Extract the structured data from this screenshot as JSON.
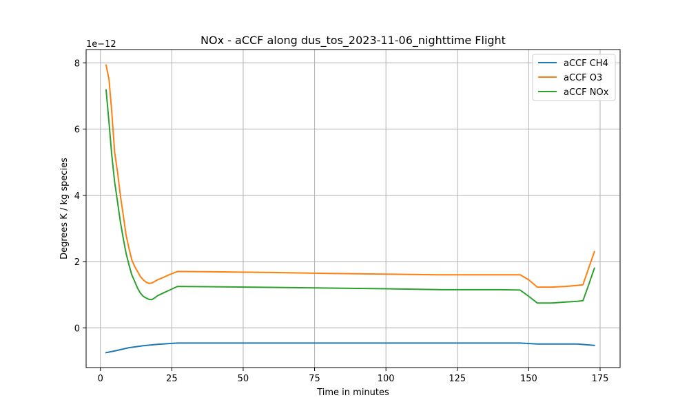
{
  "chart_data": {
    "type": "line",
    "title": "NOx - aCCF along dus_tos_2023-11-06_nighttime Flight",
    "xlabel": "Time in minutes",
    "ylabel": "Degrees K / kg species",
    "y_offset_label": "1e−12",
    "xlim": [
      -5,
      182
    ],
    "ylim": [
      -1.2,
      8.4
    ],
    "y_scale": 1e-12,
    "grid": true,
    "legend_position": "upper-right",
    "x_ticks": [
      0,
      25,
      50,
      75,
      100,
      125,
      150,
      175
    ],
    "y_ticks": [
      0,
      2,
      4,
      6,
      8
    ],
    "series": [
      {
        "name": "aCCF CH4",
        "color": "#1f77b4",
        "points": [
          [
            2,
            -0.75
          ],
          [
            5,
            -0.7
          ],
          [
            10,
            -0.6
          ],
          [
            15,
            -0.54
          ],
          [
            20,
            -0.5
          ],
          [
            25,
            -0.47
          ],
          [
            27,
            -0.46
          ],
          [
            50,
            -0.46
          ],
          [
            100,
            -0.46
          ],
          [
            147,
            -0.46
          ],
          [
            153,
            -0.49
          ],
          [
            160,
            -0.49
          ],
          [
            167,
            -0.49
          ],
          [
            173,
            -0.53
          ]
        ]
      },
      {
        "name": "aCCF O3",
        "color": "#ff7f0e",
        "points": [
          [
            2,
            7.93
          ],
          [
            3,
            7.5
          ],
          [
            4,
            6.5
          ],
          [
            5,
            5.3
          ],
          [
            6,
            4.7
          ],
          [
            7,
            4.0
          ],
          [
            8,
            3.4
          ],
          [
            9,
            2.8
          ],
          [
            10,
            2.4
          ],
          [
            11,
            2.05
          ],
          [
            12,
            1.85
          ],
          [
            13,
            1.7
          ],
          [
            14,
            1.55
          ],
          [
            15,
            1.45
          ],
          [
            16,
            1.38
          ],
          [
            17,
            1.34
          ],
          [
            18,
            1.35
          ],
          [
            20,
            1.45
          ],
          [
            22,
            1.52
          ],
          [
            24,
            1.6
          ],
          [
            27,
            1.7
          ],
          [
            40,
            1.69
          ],
          [
            60,
            1.67
          ],
          [
            80,
            1.64
          ],
          [
            100,
            1.62
          ],
          [
            120,
            1.6
          ],
          [
            140,
            1.6
          ],
          [
            147,
            1.6
          ],
          [
            150,
            1.45
          ],
          [
            153,
            1.23
          ],
          [
            158,
            1.23
          ],
          [
            163,
            1.25
          ],
          [
            167,
            1.28
          ],
          [
            169,
            1.3
          ],
          [
            171,
            1.8
          ],
          [
            173,
            2.3
          ]
        ]
      },
      {
        "name": "aCCF NOx",
        "color": "#2ca02c",
        "points": [
          [
            2,
            7.18
          ],
          [
            3,
            6.2
          ],
          [
            4,
            5.2
          ],
          [
            5,
            4.4
          ],
          [
            6,
            3.8
          ],
          [
            7,
            3.2
          ],
          [
            8,
            2.7
          ],
          [
            9,
            2.25
          ],
          [
            10,
            1.9
          ],
          [
            11,
            1.6
          ],
          [
            12,
            1.4
          ],
          [
            13,
            1.2
          ],
          [
            14,
            1.05
          ],
          [
            15,
            0.95
          ],
          [
            16,
            0.9
          ],
          [
            17,
            0.86
          ],
          [
            18,
            0.85
          ],
          [
            19,
            0.9
          ],
          [
            20,
            0.97
          ],
          [
            22,
            1.05
          ],
          [
            24,
            1.13
          ],
          [
            27,
            1.25
          ],
          [
            40,
            1.24
          ],
          [
            60,
            1.22
          ],
          [
            80,
            1.2
          ],
          [
            100,
            1.18
          ],
          [
            120,
            1.15
          ],
          [
            140,
            1.15
          ],
          [
            147,
            1.14
          ],
          [
            150,
            0.95
          ],
          [
            153,
            0.75
          ],
          [
            158,
            0.75
          ],
          [
            163,
            0.78
          ],
          [
            167,
            0.8
          ],
          [
            169,
            0.82
          ],
          [
            171,
            1.3
          ],
          [
            173,
            1.8
          ]
        ]
      }
    ]
  }
}
